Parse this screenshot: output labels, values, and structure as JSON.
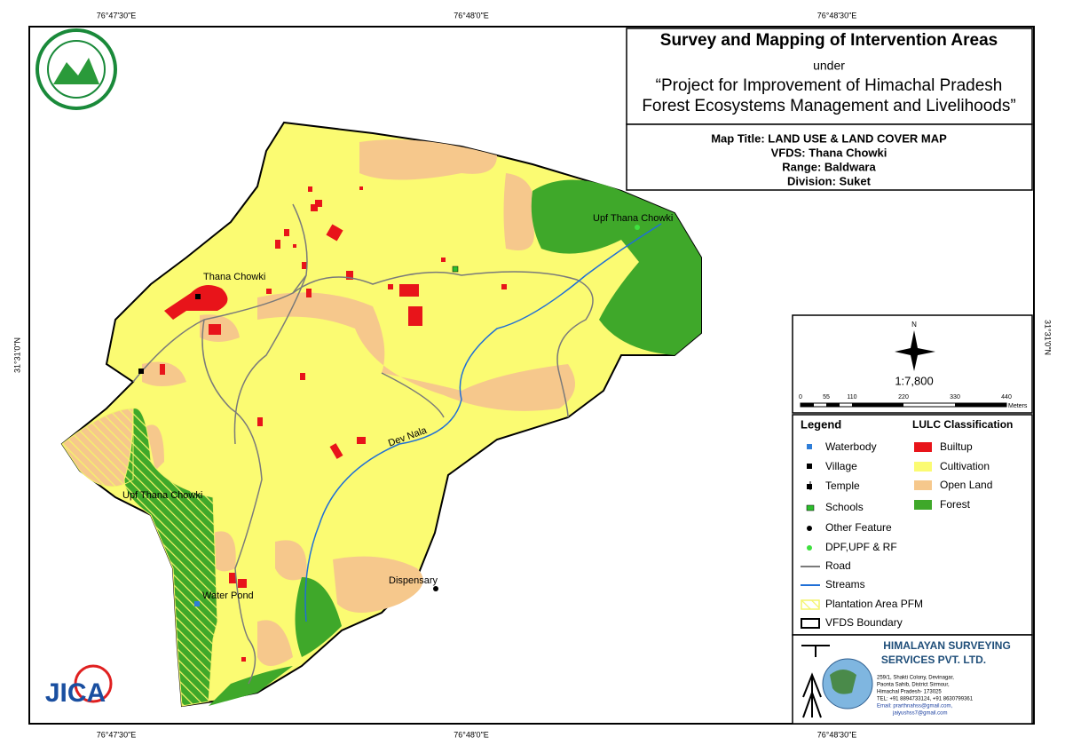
{
  "coords": {
    "top": [
      "76°47'30\"E",
      "76°48'0\"E",
      "76°48'30\"E"
    ],
    "bottom": [
      "76°47'30\"E",
      "76°48'0\"E",
      "76°48'30\"E"
    ],
    "left": "31°31'0\"N",
    "right": "31°31'0\"N"
  },
  "header": {
    "title": "Survey and Mapping of Intervention Areas",
    "under": "under",
    "project": [
      "“Project for Improvement of Himachal Pradesh",
      "Forest Ecosystems Management and Livelihoods”"
    ]
  },
  "map_info": [
    "Map Title: LAND USE & LAND COVER MAP",
    "VFDS: Thana Chowki",
    "Range: Baldwara",
    "Division: Suket"
  ],
  "north": "N",
  "scale": {
    "ratio": "1:7,800",
    "ticks": [
      "0",
      "55",
      "110",
      "220",
      "330",
      "440"
    ],
    "unit": "Meters"
  },
  "legend": {
    "title": "Legend",
    "items": [
      "Waterbody",
      "Village",
      "Temple",
      "Schools",
      "Other Feature",
      "DPF,UPF & RF",
      "Road",
      "Streams",
      "Plantation Area PFM",
      "VFDS Boundary"
    ]
  },
  "lulc": {
    "title": "LULC Classification",
    "classes": [
      "Builtup",
      "Cultivation",
      "Open Land",
      "Forest"
    ]
  },
  "map_labels": {
    "thana_chowki": "Thana Chowki",
    "upf_north": "Upf Thana Chowki",
    "upf_south": "Upf Thana Chowki",
    "dev_nala": "Dev Nala",
    "dispensary": "Dispensary",
    "water_pond": "Water Pond"
  },
  "company": {
    "name": [
      "HIMALAYAN SURVEYING",
      "SERVICES PVT. LTD."
    ],
    "address": [
      "259/1, Shakti Colony, Devinagar,",
      "Paonta Sahib, District Sirmour,",
      "Himachal Pradesh- 173025",
      "TEL: +91 8894733124, +91 8630799361",
      "Email: prarthnahss@gmail.com,",
      "jaiyushss7@gmail.com"
    ]
  },
  "jica": "JICA"
}
